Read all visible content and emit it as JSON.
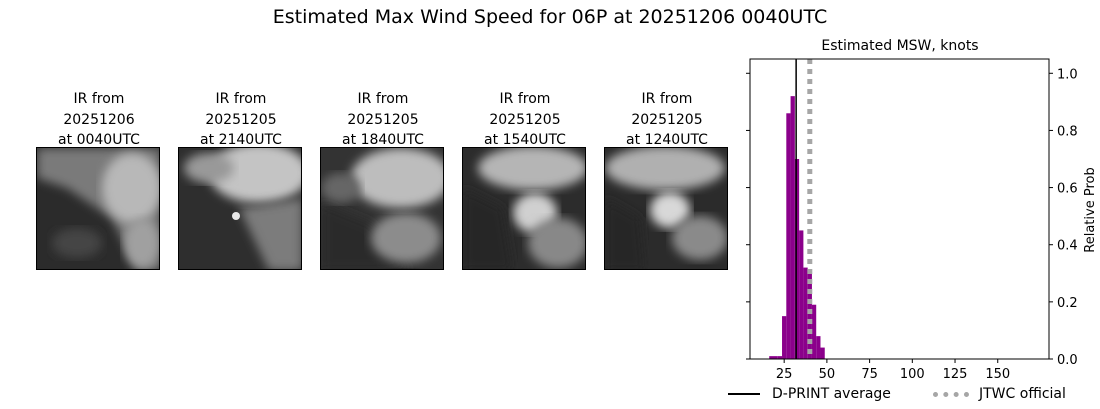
{
  "title": "Estimated Max Wind Speed for 06P at 20251206 0040UTC",
  "panels": [
    {
      "caption": "IR from\n20251206\nat 0040UTC",
      "icon": "satellite-ir-image"
    },
    {
      "caption": "IR from\n20251205\nat 2140UTC",
      "icon": "satellite-ir-image"
    },
    {
      "caption": "IR from\n20251205\nat 1840UTC",
      "icon": "satellite-ir-image"
    },
    {
      "caption": "IR from\n20251205\nat 1540UTC",
      "icon": "satellite-ir-image"
    },
    {
      "caption": "IR from\n20251205\nat 1240UTC",
      "icon": "satellite-ir-image"
    }
  ],
  "chart_data": {
    "type": "bar",
    "title": "Estimated MSW, knots",
    "ylabel": "Relative Prob",
    "xlim": [
      5,
      180
    ],
    "ylim": [
      0,
      1.05
    ],
    "xticks": [
      25,
      50,
      75,
      100,
      125,
      150
    ],
    "yticks": [
      "0.0",
      "0.2",
      "0.4",
      "0.6",
      "0.8",
      "1.0"
    ],
    "y_axis_side": "right",
    "bar_color": "#8b008b",
    "bin_width": 2.5,
    "bins": [
      {
        "x": 17.5,
        "value": 0.01
      },
      {
        "x": 20,
        "value": 0.01
      },
      {
        "x": 22.5,
        "value": 0.01
      },
      {
        "x": 25,
        "value": 0.15
      },
      {
        "x": 27.5,
        "value": 0.86
      },
      {
        "x": 30,
        "value": 0.92
      },
      {
        "x": 32.5,
        "value": 0.7
      },
      {
        "x": 35,
        "value": 0.45
      },
      {
        "x": 37.5,
        "value": 0.32
      },
      {
        "x": 40,
        "value": 0.3
      },
      {
        "x": 42.5,
        "value": 0.19
      },
      {
        "x": 45,
        "value": 0.08
      },
      {
        "x": 47.5,
        "value": 0.04
      }
    ],
    "dprint_average": 32,
    "jtwc_official": 40,
    "legend": [
      {
        "label": "D-PRINT average",
        "style": "solid",
        "color": "#000000"
      },
      {
        "label": "JTWC official",
        "style": "dotted",
        "color": "#a6a6a6"
      }
    ],
    "legend_position": "bottom"
  }
}
